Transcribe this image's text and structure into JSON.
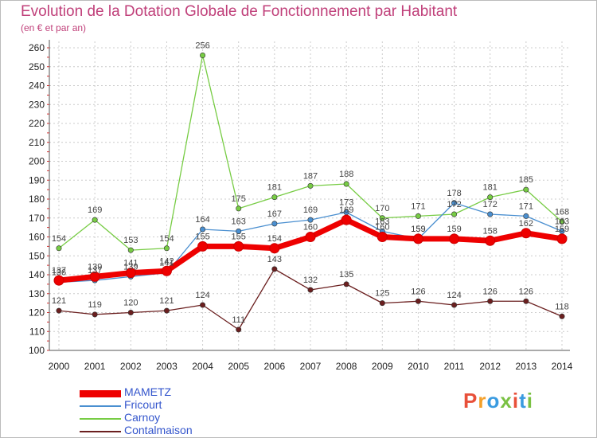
{
  "title": "Evolution de la Dotation Globale de Fonctionnement par Habitant",
  "subtitle": "(en € et par an)",
  "logo": {
    "text": "Proxiti",
    "colors": [
      "#e8503a",
      "#f4a02a",
      "#3a9be0",
      "#7ac143",
      "#e8503a",
      "#3a9be0",
      "#7ac143"
    ]
  },
  "colors": {
    "grid": "#cccccc",
    "axis": "#555555",
    "tick_text": "#222222",
    "value_text": "#444444"
  },
  "chart_data": {
    "type": "line",
    "title": "Evolution de la Dotation Globale de Fonctionnement par Habitant",
    "subtitle": "(en € et par an)",
    "x": [
      "2000",
      "2001",
      "2002",
      "2003",
      "2004",
      "2005",
      "2006",
      "2007",
      "2008",
      "2009",
      "2010",
      "2011",
      "2012",
      "2013",
      "2014"
    ],
    "ylim": [
      100,
      260
    ],
    "yticks": [
      100,
      110,
      120,
      130,
      140,
      150,
      160,
      170,
      180,
      190,
      200,
      210,
      220,
      230,
      240,
      250,
      260
    ],
    "grid": true,
    "legend_position": "bottom-left",
    "series": [
      {
        "name": "MAMETZ",
        "color": "#ee0000",
        "values": [
          137,
          139,
          141,
          142,
          155,
          155,
          154,
          160,
          169,
          160,
          159,
          159,
          158,
          162,
          159
        ]
      },
      {
        "name": "Fricourt",
        "color": "#4a8fd0",
        "values": [
          136,
          137,
          139,
          141,
          164,
          163,
          167,
          169,
          173,
          163,
          159,
          178,
          172,
          171,
          163
        ]
      },
      {
        "name": "Carnoy",
        "color": "#77cc44",
        "values": [
          154,
          169,
          153,
          154,
          256,
          175,
          181,
          187,
          188,
          170,
          171,
          172,
          181,
          185,
          168
        ]
      },
      {
        "name": "Contalmaison",
        "color": "#6b1f1f",
        "values": [
          121,
          119,
          120,
          121,
          124,
          111,
          143,
          132,
          135,
          125,
          126,
          124,
          126,
          126,
          118
        ]
      }
    ]
  }
}
